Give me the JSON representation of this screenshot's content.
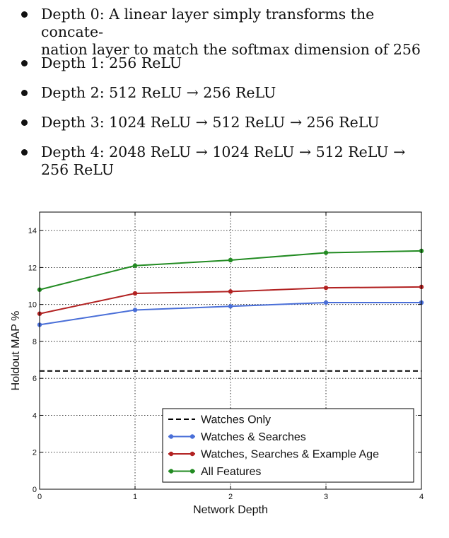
{
  "bullets": [
    {
      "lines": [
        "Depth 0: A linear layer simply transforms the concate-",
        "nation layer to match the softmax dimension of 256"
      ]
    },
    {
      "lines": [
        "Depth 1: 256 ReLU"
      ]
    },
    {
      "lines": [
        "Depth 2: 512 ReLU → 256 ReLU"
      ]
    },
    {
      "lines": [
        "Depth 3: 1024 ReLU → 512 ReLU → 256 ReLU"
      ]
    },
    {
      "lines": [
        "Depth 4: 2048 ReLU → 1024 ReLU → 512 ReLU →",
        "256 ReLU"
      ]
    }
  ],
  "chart_data": {
    "type": "line",
    "title": "",
    "xlabel": "Network Depth",
    "ylabel": "Holdout MAP %",
    "xlim": [
      0,
      4
    ],
    "ylim": [
      0,
      15
    ],
    "x": [
      0,
      1,
      2,
      3,
      4
    ],
    "xticks": [
      "0",
      "1",
      "2",
      "3",
      "4"
    ],
    "yticks": [
      "0",
      "2",
      "4",
      "6",
      "8",
      "10",
      "12",
      "14"
    ],
    "grid": true,
    "legend_position": "bottom-right",
    "series": [
      {
        "name": "Watches Only",
        "style": "dashed",
        "color": "#000000",
        "values": [
          6.4,
          6.4,
          6.4,
          6.4,
          6.4
        ]
      },
      {
        "name": "Watches & Searches",
        "style": "solid",
        "color": "#4a6fd8",
        "values": [
          8.9,
          9.7,
          9.9,
          10.1,
          10.1
        ]
      },
      {
        "name": "Watches, Searches & Example Age",
        "style": "solid",
        "color": "#b22222",
        "values": [
          9.5,
          10.6,
          10.7,
          10.9,
          10.95
        ]
      },
      {
        "name": "All Features",
        "style": "solid",
        "color": "#228b22",
        "values": [
          10.8,
          12.1,
          12.4,
          12.8,
          12.9
        ]
      }
    ]
  }
}
